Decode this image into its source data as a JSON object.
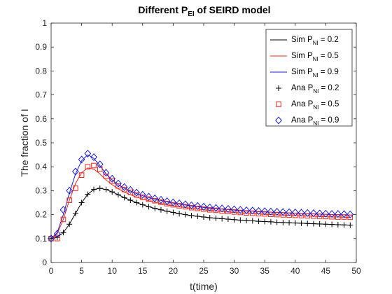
{
  "chart_data": {
    "type": "line",
    "title": "Different P",
    "title_sub": "EI",
    "title_suffix": " of SEIRD model",
    "xlabel": "t(time)",
    "ylabel": "The fraction of I",
    "xlim": [
      0,
      50
    ],
    "ylim": [
      0,
      1
    ],
    "xticks": [
      0,
      5,
      10,
      15,
      20,
      25,
      30,
      35,
      40,
      45,
      50
    ],
    "yticks": [
      0,
      0.1,
      0.2,
      0.3,
      0.4,
      0.5,
      0.6,
      0.7,
      0.8,
      0.9,
      1
    ],
    "grid": false,
    "legend_position": "top-right",
    "x": [
      0,
      1,
      2,
      3,
      4,
      5,
      6,
      7,
      8,
      9,
      10,
      11,
      12,
      13,
      14,
      15,
      16,
      17,
      18,
      19,
      20,
      21,
      22,
      23,
      24,
      25,
      26,
      27,
      28,
      29,
      30,
      31,
      32,
      33,
      34,
      35,
      36,
      37,
      38,
      39,
      40,
      41,
      42,
      43,
      44,
      45,
      46,
      47,
      48,
      49
    ],
    "series": [
      {
        "name": "Sim P",
        "name_sub": "NI",
        "name_suffix": " = 0.2",
        "style": "line",
        "color": "#000000",
        "values": [
          0.1,
          0.105,
          0.125,
          0.16,
          0.205,
          0.25,
          0.285,
          0.305,
          0.31,
          0.305,
          0.295,
          0.283,
          0.271,
          0.26,
          0.25,
          0.241,
          0.233,
          0.226,
          0.22,
          0.214,
          0.209,
          0.204,
          0.2,
          0.196,
          0.193,
          0.19,
          0.187,
          0.185,
          0.183,
          0.181,
          0.179,
          0.177,
          0.175,
          0.174,
          0.172,
          0.171,
          0.17,
          0.168,
          0.167,
          0.166,
          0.165,
          0.164,
          0.163,
          0.162,
          0.161,
          0.16,
          0.159,
          0.158,
          0.157,
          0.156
        ]
      },
      {
        "name": "Sim P",
        "name_sub": "NI",
        "name_suffix": " = 0.5",
        "style": "line",
        "color": "#e8281e",
        "values": [
          0.1,
          0.12,
          0.18,
          0.26,
          0.33,
          0.375,
          0.395,
          0.39,
          0.37,
          0.345,
          0.325,
          0.308,
          0.294,
          0.283,
          0.273,
          0.265,
          0.258,
          0.252,
          0.246,
          0.241,
          0.237,
          0.233,
          0.229,
          0.226,
          0.223,
          0.22,
          0.218,
          0.215,
          0.213,
          0.211,
          0.209,
          0.207,
          0.206,
          0.204,
          0.203,
          0.201,
          0.2,
          0.199,
          0.198,
          0.197,
          0.196,
          0.195,
          0.194,
          0.193,
          0.192,
          0.191,
          0.19,
          0.19,
          0.189,
          0.188
        ]
      },
      {
        "name": "Sim P",
        "name_sub": "NI",
        "name_suffix": " = 0.9",
        "style": "line",
        "color": "#1e1ed2",
        "values": [
          0.1,
          0.125,
          0.2,
          0.29,
          0.37,
          0.425,
          0.45,
          0.435,
          0.405,
          0.37,
          0.345,
          0.325,
          0.31,
          0.298,
          0.288,
          0.279,
          0.271,
          0.265,
          0.259,
          0.253,
          0.248,
          0.244,
          0.24,
          0.236,
          0.233,
          0.23,
          0.227,
          0.225,
          0.223,
          0.221,
          0.219,
          0.217,
          0.215,
          0.214,
          0.212,
          0.211,
          0.21,
          0.209,
          0.208,
          0.207,
          0.206,
          0.205,
          0.204,
          0.203,
          0.202,
          0.201,
          0.2,
          0.2,
          0.199,
          0.198
        ]
      },
      {
        "name": "Ana P",
        "name_sub": "NI",
        "name_suffix": " = 0.2",
        "style": "plus",
        "color": "#000000",
        "values": [
          0.1,
          0.105,
          0.125,
          0.16,
          0.205,
          0.25,
          0.285,
          0.305,
          0.31,
          0.305,
          0.295,
          0.283,
          0.271,
          0.26,
          0.25,
          0.241,
          0.233,
          0.226,
          0.22,
          0.214,
          0.209,
          0.204,
          0.2,
          0.196,
          0.193,
          0.19,
          0.187,
          0.185,
          0.183,
          0.181,
          0.179,
          0.177,
          0.175,
          0.174,
          0.172,
          0.171,
          0.17,
          0.168,
          0.167,
          0.166,
          0.165,
          0.164,
          0.163,
          0.162,
          0.161,
          0.16,
          0.159,
          0.158,
          0.157,
          0.156
        ]
      },
      {
        "name": "Ana P",
        "name_sub": "NI",
        "name_suffix": " = 0.5",
        "style": "square",
        "color": "#e8281e",
        "values": [
          0.1,
          0.1,
          0.18,
          0.26,
          0.31,
          0.365,
          0.4,
          0.405,
          0.39,
          0.36,
          0.34,
          0.32,
          0.305,
          0.293,
          0.282,
          0.273,
          0.265,
          0.258,
          0.252,
          0.246,
          0.241,
          0.237,
          0.233,
          0.229,
          0.226,
          0.223,
          0.22,
          0.218,
          0.215,
          0.213,
          0.211,
          0.209,
          0.207,
          0.206,
          0.204,
          0.203,
          0.201,
          0.2,
          0.199,
          0.198,
          0.197,
          0.196,
          0.195,
          0.194,
          0.193,
          0.192,
          0.191,
          0.19,
          0.19,
          0.189
        ]
      },
      {
        "name": "Ana P",
        "name_sub": "NI",
        "name_suffix": " = 0.9",
        "style": "diamond",
        "color": "#1e1ed2",
        "values": [
          0.1,
          0.12,
          0.22,
          0.3,
          0.38,
          0.43,
          0.455,
          0.44,
          0.41,
          0.375,
          0.35,
          0.33,
          0.315,
          0.303,
          0.292,
          0.283,
          0.275,
          0.268,
          0.262,
          0.256,
          0.251,
          0.247,
          0.243,
          0.239,
          0.236,
          0.233,
          0.23,
          0.228,
          0.226,
          0.224,
          0.222,
          0.22,
          0.218,
          0.217,
          0.215,
          0.214,
          0.213,
          0.212,
          0.211,
          0.21,
          0.209,
          0.208,
          0.207,
          0.206,
          0.205,
          0.204,
          0.203,
          0.203,
          0.202,
          0.201
        ]
      }
    ]
  }
}
